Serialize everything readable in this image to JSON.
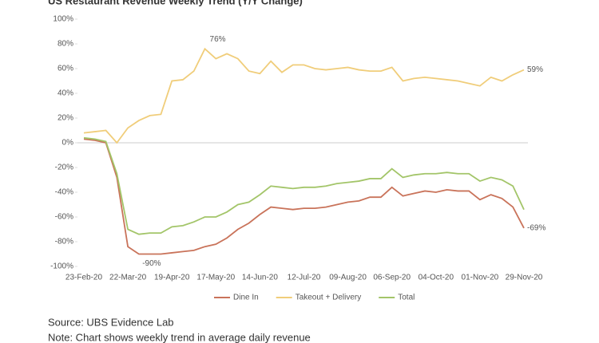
{
  "chart_data": {
    "type": "line",
    "title": "US Restaurant Revenue Weekly Trend (Y/Y Change)",
    "categories": [
      "23-Feb-20",
      null,
      null,
      null,
      "22-Mar-20",
      null,
      null,
      null,
      "19-Apr-20",
      null,
      null,
      null,
      "17-May-20",
      null,
      null,
      null,
      "14-Jun-20",
      null,
      null,
      null,
      "12-Jul-20",
      null,
      null,
      null,
      "09-Aug-20",
      null,
      null,
      null,
      "06-Sep-20",
      null,
      null,
      null,
      "04-Oct-20",
      null,
      null,
      null,
      "01-Nov-20",
      null,
      null,
      null,
      "29-Nov-20"
    ],
    "series": [
      {
        "name": "Dine In",
        "color": "#c9735a",
        "values": [
          3,
          2,
          0,
          -28,
          -84,
          -90,
          -90,
          -90,
          -89,
          -88,
          -87,
          -84,
          -82,
          -77,
          -70,
          -65,
          -58,
          -52,
          -53,
          -54,
          -53,
          -53,
          -52,
          -50,
          -48,
          -47,
          -44,
          -44,
          -36,
          -43,
          -41,
          -39,
          -40,
          -38,
          -39,
          -39,
          -46,
          -42,
          -45,
          -52,
          -69
        ],
        "value_labels": [
          null,
          null,
          null,
          null,
          null,
          "-90%",
          null,
          null,
          null,
          null,
          null,
          null,
          null,
          null,
          null,
          null,
          null,
          null,
          null,
          null,
          null,
          null,
          null,
          null,
          null,
          null,
          null,
          null,
          null,
          null,
          null,
          null,
          null,
          null,
          null,
          null,
          null,
          null,
          null,
          null,
          "-69%"
        ]
      },
      {
        "name": "Takeout + Delivery",
        "color": "#f0cd7a",
        "values": [
          8,
          9,
          10,
          0,
          12,
          18,
          22,
          23,
          50,
          51,
          58,
          76,
          68,
          72,
          68,
          58,
          56,
          66,
          57,
          63,
          63,
          60,
          59,
          60,
          61,
          59,
          58,
          58,
          61,
          50,
          52,
          53,
          52,
          51,
          50,
          48,
          46,
          53,
          50,
          55,
          59
        ],
        "value_labels": [
          null,
          null,
          null,
          null,
          null,
          null,
          null,
          null,
          null,
          null,
          null,
          "76%",
          null,
          null,
          null,
          null,
          null,
          null,
          null,
          null,
          null,
          null,
          null,
          null,
          null,
          null,
          null,
          null,
          null,
          null,
          null,
          null,
          null,
          null,
          null,
          null,
          null,
          null,
          null,
          null,
          "59%"
        ]
      },
      {
        "name": "Total",
        "color": "#a3c569",
        "values": [
          4,
          3,
          1,
          -25,
          -70,
          -74,
          -73,
          -73,
          -68,
          -67,
          -64,
          -60,
          -60,
          -56,
          -50,
          -48,
          -42,
          -35,
          -36,
          -37,
          -36,
          -36,
          -35,
          -33,
          -32,
          -31,
          -29,
          -29,
          -21,
          -28,
          -26,
          -25,
          -25,
          -24,
          -25,
          -25,
          -31,
          -28,
          -30,
          -35,
          -54
        ]
      }
    ],
    "ylim": [
      -100,
      100
    ],
    "yticks": [
      {
        "value": -100,
        "label": "-100%"
      },
      {
        "value": -80,
        "label": "-80%"
      },
      {
        "value": -60,
        "label": "-60%"
      },
      {
        "value": -40,
        "label": "-40%"
      },
      {
        "value": -20,
        "label": "-20%"
      },
      {
        "value": 0,
        "label": "0%"
      },
      {
        "value": 20,
        "label": "20%"
      },
      {
        "value": 40,
        "label": "40%"
      },
      {
        "value": 60,
        "label": "60%"
      },
      {
        "value": 80,
        "label": "80%"
      },
      {
        "value": 100,
        "label": "100%"
      }
    ],
    "legend": "bottom",
    "source": "Source: UBS Evidence Lab",
    "note": "Note: Chart shows weekly trend in average daily revenue"
  }
}
